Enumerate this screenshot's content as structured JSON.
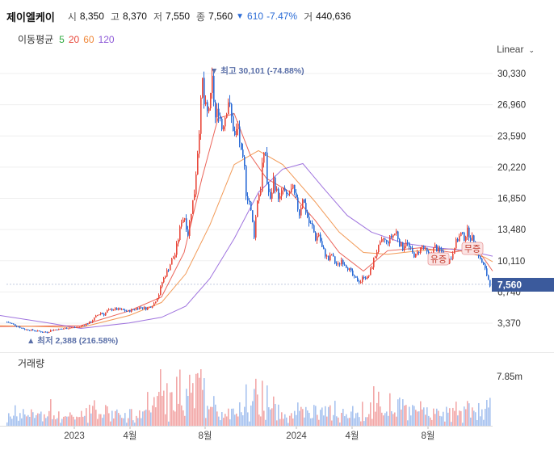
{
  "header": {
    "stock_name": "제이엘케이",
    "open_label": "시",
    "open": "8,350",
    "high_label": "고",
    "high": "8,370",
    "low_label": "저",
    "low": "7,550",
    "close_label": "종",
    "close": "7,560",
    "change_arrow": "▼",
    "change": "610",
    "change_pct": "-7.47%",
    "volume_label": "거",
    "volume": "440,636",
    "change_color": "#2a6bd6"
  },
  "ma_legend": {
    "title": "이동평균",
    "periods": [
      {
        "label": "5",
        "color": "#2eaa3f"
      },
      {
        "label": "20",
        "color": "#e8483b"
      },
      {
        "label": "60",
        "color": "#f0883a"
      },
      {
        "label": "120",
        "color": "#8e5bd8"
      }
    ]
  },
  "scale_button": {
    "label": "Linear",
    "icon": "chevron-down-icon"
  },
  "volume_panel": {
    "title": "거래량",
    "max_label": "7.85m"
  },
  "chart_data": {
    "type": "candlestick",
    "price_axis": {
      "ticks": [
        "30,330",
        "26,960",
        "23,590",
        "20,220",
        "16,850",
        "13,480",
        "10,110",
        "6,740",
        "3,370"
      ],
      "ylim": [
        1690,
        31000
      ]
    },
    "x_ticks": [
      "2023",
      "4월",
      "8월",
      "2024",
      "4월",
      "8월"
    ],
    "current_price": {
      "label": "7,560",
      "value": 7560,
      "color": "#3b5a9c"
    },
    "annotations": {
      "high": {
        "label": "최고 30,101 (-74.88%)",
        "value": 30101
      },
      "low": {
        "label": "최저 2,388 (216.58%)",
        "value": 2388
      },
      "events": [
        "유증",
        "무증"
      ]
    },
    "colors": {
      "up": "#e8483b",
      "down": "#2a6bd6",
      "vol_up": "#f2a8a8",
      "vol_down": "#a8c3ef"
    },
    "close_path": [
      [
        0,
        3700
      ],
      [
        8,
        3500
      ],
      [
        14,
        3300
      ],
      [
        22,
        3000
      ],
      [
        30,
        2700
      ],
      [
        40,
        2600
      ],
      [
        50,
        2450
      ],
      [
        58,
        2400
      ],
      [
        62,
        2600
      ],
      [
        70,
        2700
      ],
      [
        80,
        2800
      ],
      [
        88,
        2900
      ],
      [
        96,
        2950
      ],
      [
        104,
        3200
      ],
      [
        112,
        3500
      ],
      [
        118,
        4100
      ],
      [
        124,
        4500
      ],
      [
        128,
        4300
      ],
      [
        132,
        4700
      ],
      [
        140,
        4900
      ],
      [
        150,
        4800
      ],
      [
        158,
        4650
      ],
      [
        166,
        4900
      ],
      [
        174,
        5100
      ],
      [
        180,
        4950
      ],
      [
        186,
        5200
      ],
      [
        190,
        5500
      ],
      [
        196,
        6500
      ],
      [
        200,
        7800
      ],
      [
        204,
        8600
      ],
      [
        208,
        9300
      ],
      [
        212,
        10200
      ],
      [
        216,
        10800
      ],
      [
        220,
        12500
      ],
      [
        224,
        14500
      ],
      [
        228,
        14800
      ],
      [
        232,
        13000
      ],
      [
        236,
        15500
      ],
      [
        240,
        17500
      ],
      [
        244,
        22000
      ],
      [
        248,
        27000
      ],
      [
        250,
        29500
      ],
      [
        252,
        27000
      ],
      [
        256,
        26000
      ],
      [
        260,
        27500
      ],
      [
        262,
        29500
      ],
      [
        266,
        25500
      ],
      [
        270,
        26500
      ],
      [
        274,
        24500
      ],
      [
        278,
        25800
      ],
      [
        282,
        27500
      ],
      [
        286,
        25500
      ],
      [
        290,
        23500
      ],
      [
        294,
        24500
      ],
      [
        298,
        21500
      ],
      [
        302,
        20000
      ],
      [
        304,
        17500
      ],
      [
        308,
        16500
      ],
      [
        312,
        14200
      ],
      [
        314,
        12900
      ],
      [
        316,
        14800
      ],
      [
        318,
        16800
      ],
      [
        322,
        17900
      ],
      [
        324,
        20500
      ],
      [
        328,
        21900
      ],
      [
        330,
        18500
      ],
      [
        334,
        16500
      ],
      [
        338,
        18900
      ],
      [
        342,
        17500
      ],
      [
        346,
        16800
      ],
      [
        350,
        17900
      ],
      [
        354,
        16900
      ],
      [
        358,
        17500
      ],
      [
        362,
        17800
      ],
      [
        366,
        16500
      ],
      [
        370,
        15200
      ],
      [
        374,
        17000
      ],
      [
        378,
        15500
      ],
      [
        382,
        14200
      ],
      [
        386,
        13800
      ],
      [
        390,
        12500
      ],
      [
        394,
        13000
      ],
      [
        398,
        11500
      ],
      [
        402,
        10800
      ],
      [
        406,
        10200
      ],
      [
        410,
        10800
      ],
      [
        414,
        9900
      ],
      [
        418,
        9600
      ],
      [
        422,
        10200
      ],
      [
        426,
        9800
      ],
      [
        430,
        9400
      ],
      [
        434,
        8800
      ],
      [
        438,
        8200
      ],
      [
        442,
        8000
      ],
      [
        446,
        7900
      ],
      [
        450,
        8500
      ],
      [
        454,
        8200
      ],
      [
        458,
        9000
      ],
      [
        462,
        10200
      ],
      [
        466,
        11200
      ],
      [
        470,
        11800
      ],
      [
        474,
        12500
      ],
      [
        478,
        12000
      ],
      [
        482,
        12500
      ],
      [
        486,
        12900
      ],
      [
        490,
        13200
      ],
      [
        494,
        12000
      ],
      [
        498,
        11500
      ],
      [
        502,
        12300
      ],
      [
        506,
        11500
      ],
      [
        510,
        10900
      ],
      [
        514,
        10600
      ],
      [
        518,
        11200
      ],
      [
        522,
        11700
      ],
      [
        526,
        11200
      ],
      [
        530,
        10600
      ],
      [
        534,
        11100
      ],
      [
        538,
        11600
      ],
      [
        542,
        11200
      ],
      [
        546,
        11200
      ],
      [
        550,
        10600
      ],
      [
        554,
        10100
      ],
      [
        558,
        10400
      ],
      [
        562,
        11800
      ],
      [
        566,
        12400
      ],
      [
        570,
        13000
      ],
      [
        574,
        12600
      ],
      [
        578,
        13300
      ],
      [
        582,
        12600
      ],
      [
        586,
        12400
      ],
      [
        590,
        11400
      ],
      [
        594,
        10200
      ],
      [
        598,
        9600
      ],
      [
        602,
        8600
      ],
      [
        606,
        7560
      ]
    ],
    "ma": [
      {
        "period": 20,
        "color": "#e8483b",
        "points": [
          [
            0,
            3000
          ],
          [
            100,
            3100
          ],
          [
            160,
            4700
          ],
          [
            200,
            6200
          ],
          [
            228,
            11000
          ],
          [
            250,
            19000
          ],
          [
            270,
            25500
          ],
          [
            290,
            26000
          ],
          [
            310,
            21500
          ],
          [
            330,
            19000
          ],
          [
            360,
            17500
          ],
          [
            390,
            14500
          ],
          [
            420,
            11000
          ],
          [
            450,
            9000
          ],
          [
            480,
            11200
          ],
          [
            520,
            11500
          ],
          [
            560,
            11000
          ],
          [
            590,
            11500
          ],
          [
            610,
            9000
          ]
        ]
      },
      {
        "period": 60,
        "color": "#f0883a",
        "points": [
          [
            0,
            3100
          ],
          [
            100,
            2900
          ],
          [
            160,
            4200
          ],
          [
            200,
            5600
          ],
          [
            230,
            8700
          ],
          [
            260,
            14000
          ],
          [
            290,
            20500
          ],
          [
            320,
            22000
          ],
          [
            350,
            20500
          ],
          [
            390,
            16500
          ],
          [
            420,
            13200
          ],
          [
            450,
            11000
          ],
          [
            480,
            10800
          ],
          [
            520,
            11200
          ],
          [
            560,
            11400
          ],
          [
            600,
            10500
          ],
          [
            610,
            10000
          ]
        ]
      },
      {
        "period": 120,
        "color": "#8e5bd8",
        "points": [
          [
            0,
            4200
          ],
          [
            60,
            3400
          ],
          [
            100,
            2800
          ],
          [
            160,
            3400
          ],
          [
            200,
            4000
          ],
          [
            230,
            5200
          ],
          [
            260,
            8200
          ],
          [
            290,
            12500
          ],
          [
            320,
            17500
          ],
          [
            350,
            20000
          ],
          [
            375,
            20600
          ],
          [
            400,
            18000
          ],
          [
            430,
            15000
          ],
          [
            460,
            13200
          ],
          [
            500,
            12000
          ],
          [
            540,
            11500
          ],
          [
            580,
            11200
          ],
          [
            610,
            10600
          ]
        ]
      }
    ]
  }
}
